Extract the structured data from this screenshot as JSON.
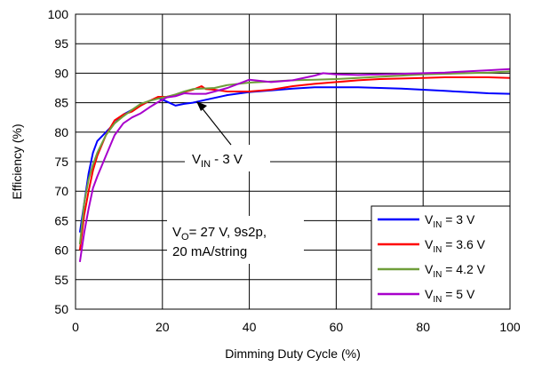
{
  "chart_data": {
    "type": "line",
    "xlabel": "Dimming Duty Cycle (%)",
    "ylabel": "Efficiency (%)",
    "xlim": [
      0,
      100
    ],
    "ylim": [
      50,
      100
    ],
    "x_ticks": [
      "0",
      "20",
      "40",
      "60",
      "80",
      "100"
    ],
    "y_ticks": [
      "50",
      "55",
      "60",
      "65",
      "70",
      "75",
      "80",
      "85",
      "90",
      "95",
      "100"
    ],
    "grid": true,
    "legend_position": "bottom-right",
    "series": [
      {
        "name_main": "V",
        "name_sub": "IN",
        "name_rest": " = 3 V",
        "color": "#0000ff",
        "x": [
          1,
          2,
          3,
          4,
          5,
          7,
          9,
          11,
          13,
          15,
          17,
          19,
          21,
          23,
          25,
          27,
          30,
          35,
          40,
          45,
          50,
          55,
          60,
          65,
          70,
          75,
          80,
          85,
          90,
          95,
          100
        ],
        "y": [
          63,
          68,
          73,
          76.5,
          78.5,
          80,
          81.5,
          83,
          83.8,
          84.5,
          85.3,
          85.8,
          85.2,
          84.5,
          84.8,
          85,
          85.5,
          86.3,
          86.8,
          87.1,
          87.4,
          87.6,
          87.6,
          87.6,
          87.5,
          87.4,
          87.2,
          87.0,
          86.8,
          86.6,
          86.5
        ]
      },
      {
        "name_main": "V",
        "name_sub": "IN",
        "name_rest": " = 3.6 V",
        "color": "#ff0000",
        "x": [
          1,
          2,
          3,
          4,
          5,
          7,
          9,
          11,
          13,
          15,
          17,
          19,
          21,
          23,
          25,
          27,
          29,
          30,
          32,
          35,
          40,
          45,
          50,
          55,
          60,
          65,
          70,
          75,
          80,
          85,
          90,
          95,
          100
        ],
        "y": [
          60,
          66,
          70,
          73.5,
          76,
          79.5,
          82,
          83,
          83.5,
          84.5,
          85.3,
          86,
          86,
          86.3,
          86.8,
          87.2,
          87.8,
          87.3,
          87.2,
          86.9,
          86.9,
          87.2,
          87.8,
          88.2,
          88.5,
          88.8,
          89,
          89.1,
          89.2,
          89.3,
          89.3,
          89.3,
          89.2
        ]
      },
      {
        "name_main": "V",
        "name_sub": "IN",
        "name_rest": " = 4.2 V",
        "color": "#6f9e3a",
        "x": [
          1,
          2,
          3,
          4,
          5,
          7,
          9,
          11,
          13,
          15,
          17,
          19,
          21,
          23,
          25,
          27,
          29,
          32,
          35,
          40,
          45,
          50,
          55,
          60,
          65,
          70,
          75,
          80,
          85,
          90,
          95,
          100
        ],
        "y": [
          61,
          68,
          72,
          74.5,
          76.5,
          79.5,
          81.5,
          82.7,
          83.8,
          84.8,
          85.3,
          85.7,
          86,
          86.4,
          86.9,
          87.3,
          87.4,
          87.5,
          88,
          88.4,
          88.6,
          88.8,
          88.9,
          89,
          89.2,
          89.4,
          89.6,
          89.8,
          89.9,
          90,
          90.1,
          90.3
        ]
      },
      {
        "name_main": "V",
        "name_sub": "IN",
        "name_rest": " = 5 V",
        "color": "#a800cc",
        "x": [
          1,
          2,
          3,
          4,
          5,
          7,
          9,
          11,
          13,
          15,
          17,
          19,
          21,
          23,
          25,
          27,
          30,
          35,
          40,
          45,
          50,
          55,
          57,
          60,
          65,
          70,
          75,
          80,
          85,
          90,
          95,
          100
        ],
        "y": [
          58,
          63,
          67,
          70.5,
          72.5,
          76,
          79.5,
          81.5,
          82.5,
          83.2,
          84.2,
          85.1,
          85.9,
          86.1,
          86.6,
          86.5,
          86.5,
          87.5,
          88.9,
          88.5,
          88.8,
          89.6,
          90,
          89.8,
          89.7,
          89.8,
          89.9,
          90,
          90.1,
          90.3,
          90.5,
          90.7
        ]
      }
    ],
    "annotations": [
      {
        "id": "vin-label",
        "main": "V",
        "sub": "IN",
        "rest": " - 3 V"
      },
      {
        "id": "conditions",
        "line1_main": "V",
        "line1_sub": "O",
        "line1_rest": "= 27 V, 9s2p,",
        "line2": "20 mA/string"
      }
    ]
  }
}
